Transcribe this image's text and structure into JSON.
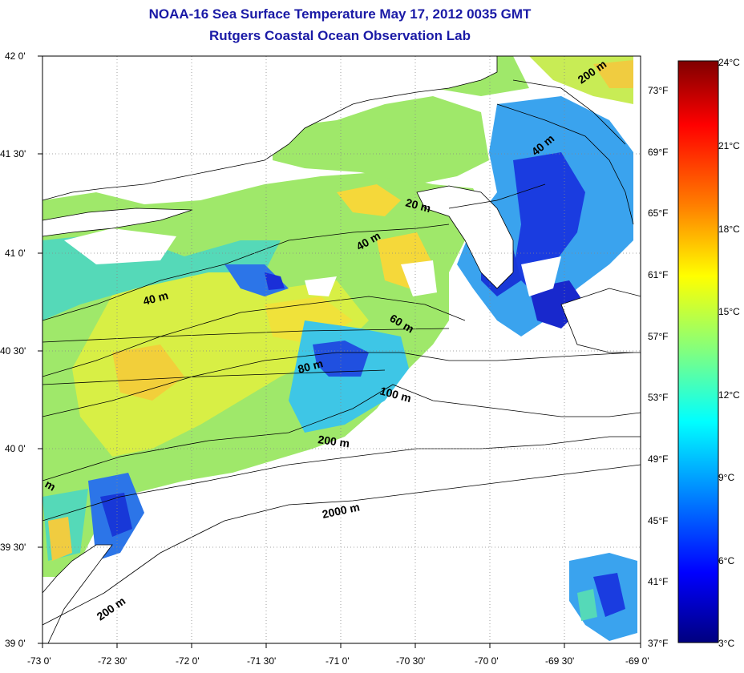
{
  "title": "NOAA-16 Sea Surface Temperature May 17, 2012 0035 GMT",
  "subtitle": "Rutgers Coastal Ocean Observation Lab",
  "lat_labels": [
    "42 0'",
    "41 30'",
    "41 0'",
    "40 30'",
    "40 0'",
    "39 30'",
    "39 0'"
  ],
  "lon_labels": [
    "-73 0'",
    "-72 30'",
    "-72 0'",
    "-71 30'",
    "-71 0'",
    "-70 30'",
    "-70 0'",
    "-69 30'",
    "-69 0'"
  ],
  "fahrenheit_labels": [
    "73°F",
    "69°F",
    "65°F",
    "61°F",
    "57°F",
    "53°F",
    "49°F",
    "45°F",
    "41°F",
    "37°F"
  ],
  "celsius_labels": [
    "24°C",
    "21°C",
    "18°C",
    "15°C",
    "12°C",
    "9°C",
    "6°C",
    "3°C"
  ],
  "depth_labels": [
    "200 m",
    "40 m",
    "20 m",
    "40 m",
    "40 m",
    "60 m",
    "80 m",
    "100 m",
    "200 m",
    "2000 m",
    "200 m",
    "m"
  ],
  "colors": {
    "title": "#1a1aa6",
    "scale": [
      "#7f0000",
      "#ff0000",
      "#ff8000",
      "#ffff00",
      "#80ff80",
      "#00ffff",
      "#0080ff",
      "#0000ff",
      "#00007f"
    ]
  }
}
